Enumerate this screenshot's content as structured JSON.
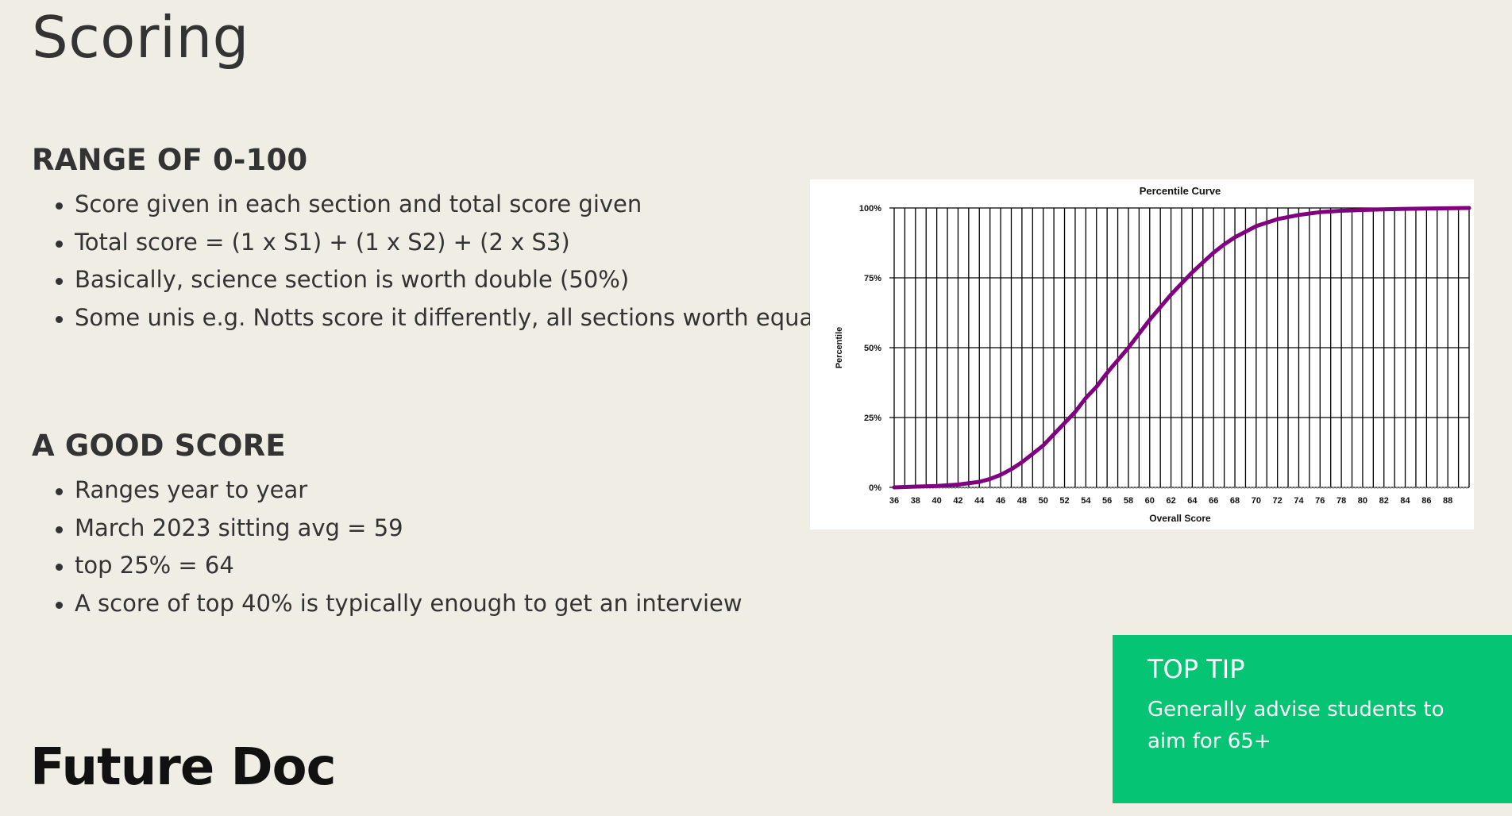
{
  "slide": {
    "title": "Scoring",
    "brand": "Future Doc"
  },
  "sections": [
    {
      "heading": "RANGE OF 0-100",
      "bullets": [
        "Score given in each section and total score given",
        "Total score = (1 x S1) + (1 x S2) + (2 x S3)",
        "Basically, science section is worth double (50%)",
        "Some unis e.g. Notts score it differently, all sections worth equal"
      ]
    },
    {
      "heading": "A GOOD SCORE",
      "bullets": [
        "Ranges year to year",
        "March 2023 sitting avg = 59",
        "top 25% = 64",
        "A score of top 40% is typically enough to get an interview"
      ]
    }
  ],
  "tip": {
    "title": "TOP TIP",
    "text": "Generally advise students to aim for 65+"
  },
  "colors": {
    "background": "#f0ede5",
    "tip_box": "#05c474",
    "curve": "#800080"
  },
  "chart_data": {
    "type": "line",
    "title": "Percentile Curve",
    "xlabel": "Overall Score",
    "ylabel": "Percentile",
    "xlim": [
      36,
      90
    ],
    "ylim": [
      0,
      100
    ],
    "x_ticks": [
      36,
      38,
      40,
      42,
      44,
      46,
      48,
      50,
      52,
      54,
      56,
      58,
      60,
      62,
      64,
      66,
      68,
      70,
      72,
      74,
      76,
      78,
      80,
      82,
      84,
      86,
      88
    ],
    "y_ticks": [
      {
        "value": 0,
        "label": "0%"
      },
      {
        "value": 25,
        "label": "25%"
      },
      {
        "value": 50,
        "label": "50%"
      },
      {
        "value": 75,
        "label": "75%"
      },
      {
        "value": 100,
        "label": "100%"
      }
    ],
    "grid": true,
    "series": [
      {
        "color": "#800080",
        "x": [
          36,
          40,
          42,
          44,
          45,
          46,
          47,
          48,
          49,
          50,
          51,
          52,
          53,
          54,
          55,
          56,
          57,
          58,
          59,
          60,
          61,
          62,
          63,
          64,
          65,
          66,
          67,
          68,
          69,
          70,
          72,
          74,
          76,
          78,
          80,
          82,
          84,
          86,
          88,
          90
        ],
        "y": [
          0,
          0.5,
          1,
          2,
          3,
          4.5,
          6.5,
          9,
          12,
          15,
          19,
          23,
          27,
          32,
          36,
          41,
          45.5,
          50,
          55,
          60,
          64.5,
          69,
          73,
          77,
          80.5,
          84,
          87,
          89.5,
          91.5,
          93.5,
          96,
          97.5,
          98.5,
          99,
          99.3,
          99.5,
          99.7,
          99.8,
          99.9,
          100
        ]
      }
    ]
  }
}
